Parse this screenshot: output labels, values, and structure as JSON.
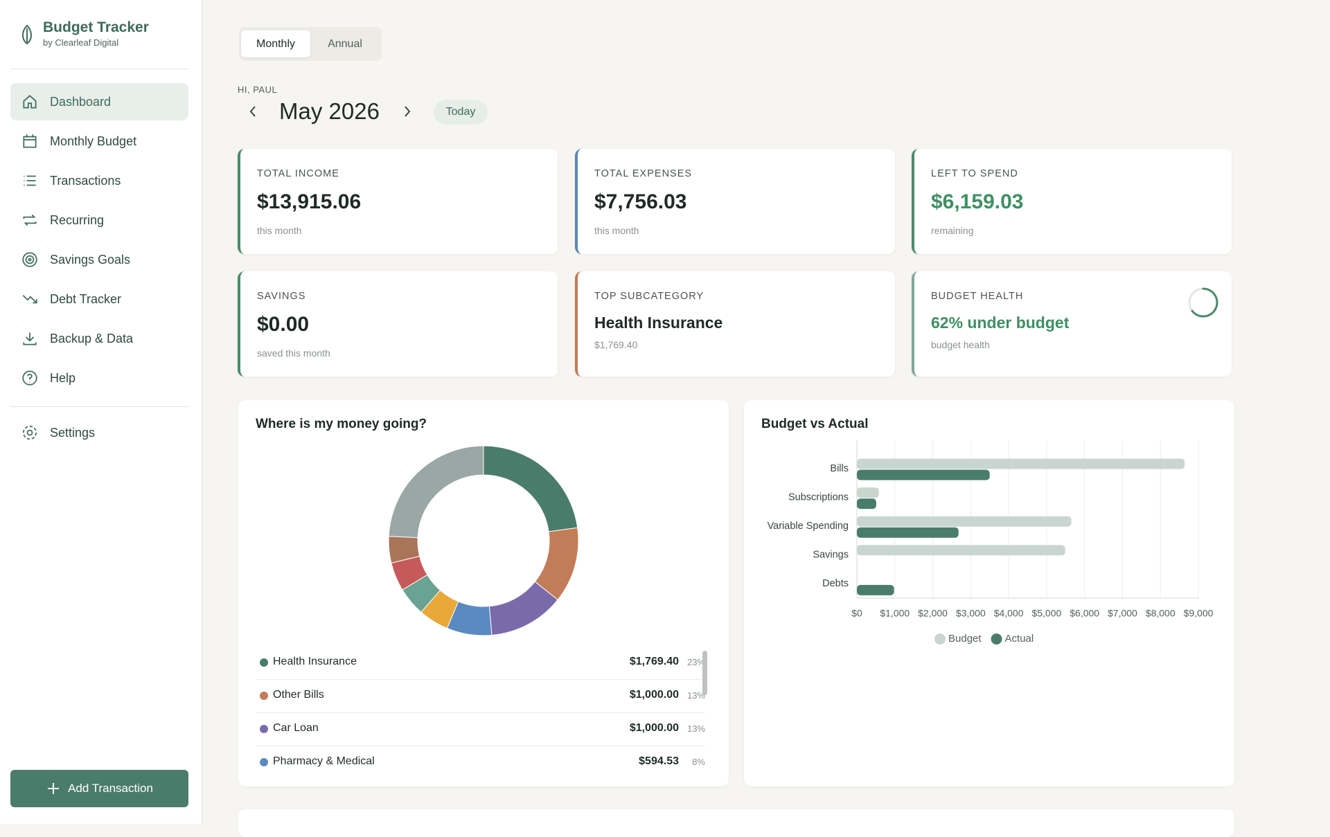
{
  "sidebar": {
    "app_name": "Budget Tracker",
    "byline": "by Clearleaf Digital",
    "nav": [
      "Dashboard",
      "Monthly Budget",
      "Transactions",
      "Recurring",
      "Savings Goals",
      "Debt Tracker",
      "Backup & Data",
      "Help"
    ],
    "settings": "Settings",
    "add_button": "Add Transaction"
  },
  "header": {
    "tabs": [
      "Monthly",
      "Annual"
    ],
    "greeting": "HI, PAUL",
    "month": "May 2026",
    "today_button": "Today"
  },
  "cards": [
    {
      "label": "TOTAL INCOME",
      "value": "$13,915.06",
      "note": "this month"
    },
    {
      "label": "TOTAL EXPENSES",
      "value": "$7,756.03",
      "note": "this month"
    },
    {
      "label": "LEFT TO SPEND",
      "value": "$6,159.03",
      "note": "remaining"
    },
    {
      "label": "SAVINGS",
      "value": "$0.00",
      "note": "saved this month"
    },
    {
      "label": "TOP SUBCATEGORY",
      "value": "Health Insurance",
      "note": "$1,769.40"
    },
    {
      "label": "BUDGET HEALTH",
      "value": "62% under budget",
      "note": "budget health"
    }
  ],
  "chart_data": [
    {
      "type": "donut",
      "title": "Where is my money going?",
      "categories": [
        "Health Insurance",
        "Other Bills",
        "Car Loan",
        "Pharmacy & Medical",
        null,
        null,
        null,
        null,
        null
      ],
      "values": [
        1769.4,
        1000.0,
        1000.0,
        594.53,
        400,
        380,
        380,
        350,
        1882.1
      ],
      "value_labels": [
        "$1,769.40",
        "$1,000.00",
        "$1,000.00",
        "$594.53",
        null,
        null,
        null,
        null,
        null
      ],
      "percent_labels": [
        "23%",
        "13%",
        "13%",
        "8%",
        null,
        null,
        null,
        null,
        null
      ],
      "colors": [
        "#4a7c6b",
        "#c27c57",
        "#7b6aaa",
        "#5a8ac0",
        "#e8a83a",
        "#6aa391",
        "#c65a5a",
        "#a8755a",
        "#9aa8a5"
      ]
    },
    {
      "type": "bar",
      "orientation": "horizontal",
      "title": "Budget vs Actual",
      "categories": [
        "Bills",
        "Subscriptions",
        "Variable Spending",
        "Savings",
        "Debts"
      ],
      "series": [
        {
          "name": "Budget",
          "color": "#c9d6d0",
          "values": [
            8640,
            580,
            5650,
            5490,
            0
          ]
        },
        {
          "name": "Actual",
          "color": "#4a7c6b",
          "values": [
            3500,
            510,
            2680,
            0,
            980
          ]
        }
      ],
      "xlim": [
        0,
        9000
      ],
      "xticks": [
        {
          "value": 0,
          "label": "$0"
        },
        {
          "value": 1000,
          "label": "$1,000"
        },
        {
          "value": 2000,
          "label": "$2,000"
        },
        {
          "value": 3000,
          "label": "$3,000"
        },
        {
          "value": 4000,
          "label": "$4,000"
        },
        {
          "value": 5000,
          "label": "$5,000"
        },
        {
          "value": 6000,
          "label": "$6,000"
        },
        {
          "value": 7000,
          "label": "$7,000"
        },
        {
          "value": 8000,
          "label": "$8,000"
        },
        {
          "value": 9000,
          "label": "$9,000"
        }
      ],
      "grid": true
    }
  ]
}
